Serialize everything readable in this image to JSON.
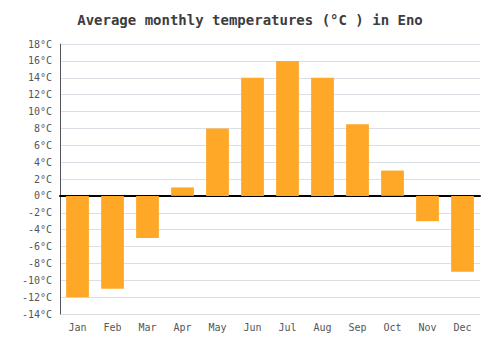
{
  "chart_data": {
    "type": "bar",
    "title": "Average monthly temperatures (°C ) in Eno",
    "categories": [
      "Jan",
      "Feb",
      "Mar",
      "Apr",
      "May",
      "Jun",
      "Jul",
      "Aug",
      "Sep",
      "Oct",
      "Nov",
      "Dec"
    ],
    "values": [
      -12,
      -11,
      -5,
      1,
      8,
      14,
      16,
      14,
      8.5,
      3,
      -3,
      -9
    ],
    "color": "#FFA726",
    "ylim": [
      -14,
      18
    ],
    "yticks": [
      {
        "value": -14,
        "label": "-14°C"
      },
      {
        "value": -12,
        "label": "-12°C"
      },
      {
        "value": -10,
        "label": "-10°C"
      },
      {
        "value": -8,
        "label": "-8°C"
      },
      {
        "value": -6,
        "label": "-6°C"
      },
      {
        "value": -4,
        "label": "-4°C"
      },
      {
        "value": -2,
        "label": "-2°C"
      },
      {
        "value": 0,
        "label": "0°C"
      },
      {
        "value": 2,
        "label": "2°C"
      },
      {
        "value": 4,
        "label": "4°C"
      },
      {
        "value": 6,
        "label": "6°C"
      },
      {
        "value": 8,
        "label": "8°C"
      },
      {
        "value": 10,
        "label": "10°C"
      },
      {
        "value": 12,
        "label": "12°C"
      },
      {
        "value": 14,
        "label": "14°C"
      },
      {
        "value": 16,
        "label": "16°C"
      },
      {
        "value": 18,
        "label": "18°C"
      }
    ],
    "grid": true
  }
}
